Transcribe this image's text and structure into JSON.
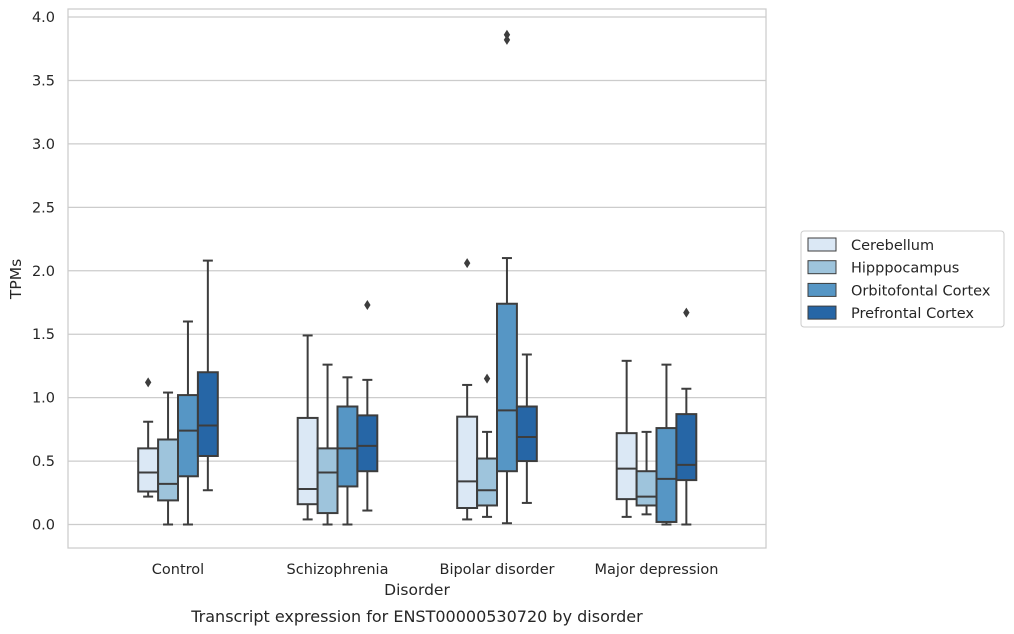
{
  "chart_data": {
    "type": "box",
    "caption": "Transcript expression for ENST00000530720 by disorder",
    "xlabel": "Disorder",
    "ylabel": "TPMs",
    "ylim": [
      -0.18,
      4.05
    ],
    "yticks": [
      "0.0",
      "0.5",
      "1.0",
      "1.5",
      "2.0",
      "2.5",
      "3.0",
      "3.5",
      "4.0"
    ],
    "grid": "horizontal",
    "legend_position": "right",
    "categories": [
      "Control",
      "Schizophrenia",
      "Bipolar disorder",
      "Major depression"
    ],
    "series": [
      {
        "name": "Cerebellum",
        "color": "#dbe8f5",
        "boxes": [
          {
            "whislo": 0.22,
            "q1": 0.26,
            "med": 0.41,
            "q3": 0.6,
            "whishi": 0.81,
            "fliers": [
              1.12
            ]
          },
          {
            "whislo": 0.04,
            "q1": 0.16,
            "med": 0.28,
            "q3": 0.84,
            "whishi": 1.49,
            "fliers": []
          },
          {
            "whislo": 0.04,
            "q1": 0.13,
            "med": 0.34,
            "q3": 0.85,
            "whishi": 1.1,
            "fliers": [
              2.06
            ]
          },
          {
            "whislo": 0.06,
            "q1": 0.2,
            "med": 0.44,
            "q3": 0.72,
            "whishi": 1.29,
            "fliers": []
          }
        ]
      },
      {
        "name": "Hipppocampus",
        "color": "#9ec4dc",
        "boxes": [
          {
            "whislo": 0.0,
            "q1": 0.19,
            "med": 0.32,
            "q3": 0.67,
            "whishi": 1.04,
            "fliers": []
          },
          {
            "whislo": 0.0,
            "q1": 0.09,
            "med": 0.41,
            "q3": 0.6,
            "whishi": 1.26,
            "fliers": []
          },
          {
            "whislo": 0.06,
            "q1": 0.15,
            "med": 0.27,
            "q3": 0.52,
            "whishi": 0.73,
            "fliers": [
              1.15
            ]
          },
          {
            "whislo": 0.08,
            "q1": 0.15,
            "med": 0.22,
            "q3": 0.42,
            "whishi": 0.73,
            "fliers": []
          }
        ]
      },
      {
        "name": "Orbitofontal Cortex",
        "color": "#5696c5",
        "boxes": [
          {
            "whislo": 0.0,
            "q1": 0.38,
            "med": 0.74,
            "q3": 1.02,
            "whishi": 1.6,
            "fliers": []
          },
          {
            "whislo": 0.0,
            "q1": 0.3,
            "med": 0.6,
            "q3": 0.93,
            "whishi": 1.16,
            "fliers": []
          },
          {
            "whislo": 0.01,
            "q1": 0.42,
            "med": 0.9,
            "q3": 1.74,
            "whishi": 2.1,
            "fliers": [
              3.82,
              3.86
            ]
          },
          {
            "whislo": 0.0,
            "q1": 0.02,
            "med": 0.36,
            "q3": 0.76,
            "whishi": 1.26,
            "fliers": []
          }
        ]
      },
      {
        "name": "Prefrontal Cortex",
        "color": "#2666a6",
        "boxes": [
          {
            "whislo": 0.27,
            "q1": 0.54,
            "med": 0.78,
            "q3": 1.2,
            "whishi": 2.08,
            "fliers": []
          },
          {
            "whislo": 0.11,
            "q1": 0.42,
            "med": 0.62,
            "q3": 0.86,
            "whishi": 1.14,
            "fliers": [
              1.73
            ]
          },
          {
            "whislo": 0.17,
            "q1": 0.5,
            "med": 0.69,
            "q3": 0.93,
            "whishi": 1.34,
            "fliers": []
          },
          {
            "whislo": 0.0,
            "q1": 0.35,
            "med": 0.47,
            "q3": 0.87,
            "whishi": 1.07,
            "fliers": [
              1.67
            ]
          }
        ]
      }
    ]
  }
}
